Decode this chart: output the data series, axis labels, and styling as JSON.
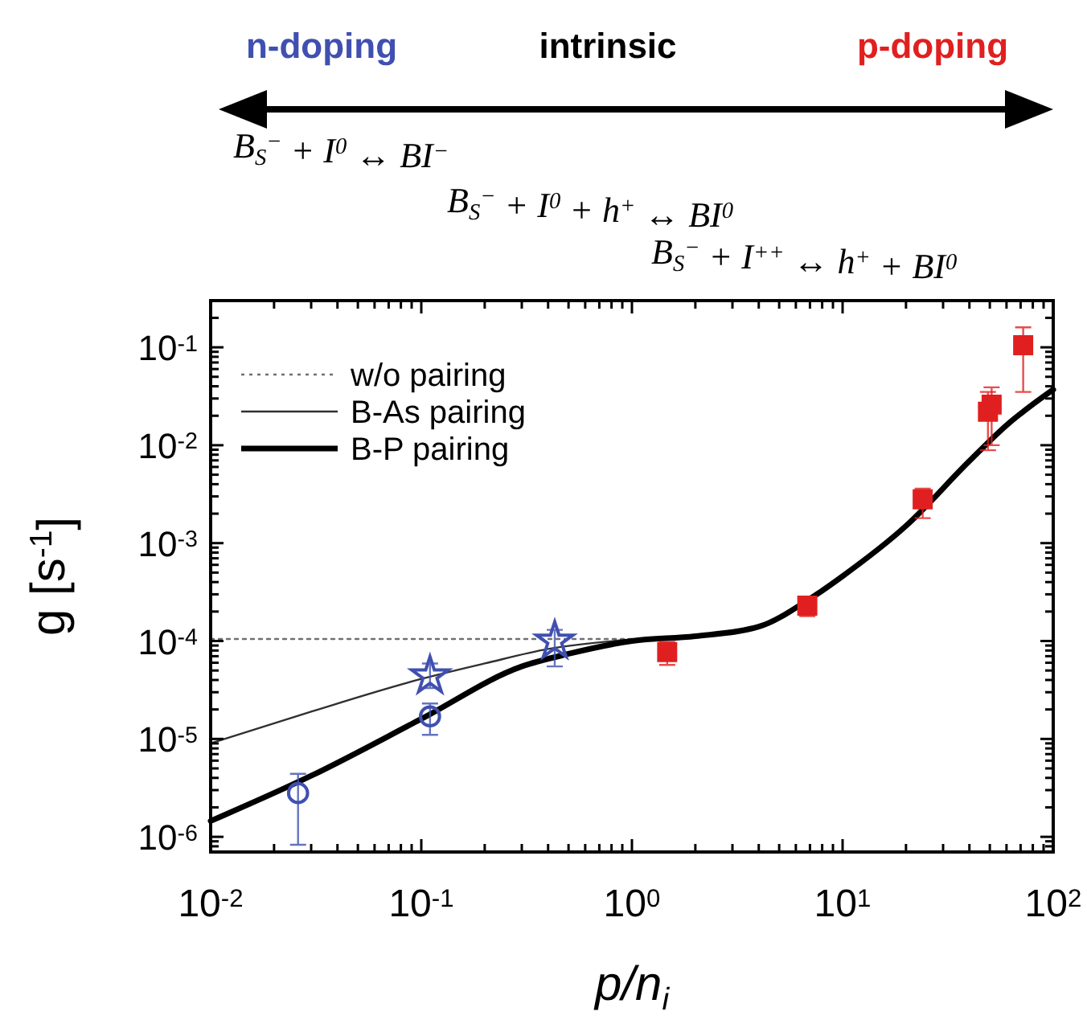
{
  "chart_data": {
    "type": "line",
    "xlabel": "p/n$_{i}$",
    "ylabel": "g [s$^{-1}$]",
    "annotations": [
      "n-doping",
      "intrinsic",
      "p-doping",
      "B$_{S}$$^{−}$ + I$^{0}$ ↔ BI$^{−}$",
      "B$_{S}$$^{−}$ + I$^{0}$ + h$^{+}$ ↔ BI$^{0}$",
      "B$_{S}$$^{−}$ + I$^{++}$ ↔ h$^{+}$ + BI$^{0}$"
    ],
    "log": "xy",
    "legend": "top left",
    "grid": false,
    "xlim": [
      0.01,
      100
    ],
    "ylim": [
      7e-07,
      0.3
    ],
    "xticks": [
      {
        "value": 0.01,
        "label": "10$^{-2}$"
      },
      {
        "value": 0.02,
        "label": null
      },
      {
        "value": 0.03,
        "label": null
      },
      {
        "value": 0.04,
        "label": null
      },
      {
        "value": 0.05,
        "label": null
      },
      {
        "value": 0.06,
        "label": null
      },
      {
        "value": 0.07,
        "label": null
      },
      {
        "value": 0.08,
        "label": null
      },
      {
        "value": 0.09,
        "label": null
      },
      {
        "value": 0.1,
        "label": "10$^{-1}$"
      },
      {
        "value": 0.2,
        "label": null
      },
      {
        "value": 0.3,
        "label": null
      },
      {
        "value": 0.4,
        "label": null
      },
      {
        "value": 0.5,
        "label": null
      },
      {
        "value": 0.6,
        "label": null
      },
      {
        "value": 0.7,
        "label": null
      },
      {
        "value": 0.8,
        "label": null
      },
      {
        "value": 0.9,
        "label": null
      },
      {
        "value": 1,
        "label": "10$^{0}$"
      },
      {
        "value": 2,
        "label": null
      },
      {
        "value": 3,
        "label": null
      },
      {
        "value": 4,
        "label": null
      },
      {
        "value": 5,
        "label": null
      },
      {
        "value": 6,
        "label": null
      },
      {
        "value": 7,
        "label": null
      },
      {
        "value": 8,
        "label": null
      },
      {
        "value": 9,
        "label": null
      },
      {
        "value": 10,
        "label": "10$^{1}$"
      },
      {
        "value": 20,
        "label": null
      },
      {
        "value": 30,
        "label": null
      },
      {
        "value": 40,
        "label": null
      },
      {
        "value": 50,
        "label": null
      },
      {
        "value": 60,
        "label": null
      },
      {
        "value": 70,
        "label": null
      },
      {
        "value": 80,
        "label": null
      },
      {
        "value": 90,
        "label": null
      },
      {
        "value": 100,
        "label": "10$^{2}$"
      }
    ],
    "yticks": [
      {
        "value": 8e-07,
        "label": null
      },
      {
        "value": 9e-07,
        "label": null
      },
      {
        "value": 1e-06,
        "label": "10$^{-6}$"
      },
      {
        "value": 2e-06,
        "label": null
      },
      {
        "value": 3e-06,
        "label": null
      },
      {
        "value": 4e-06,
        "label": null
      },
      {
        "value": 5e-06,
        "label": null
      },
      {
        "value": 6e-06,
        "label": null
      },
      {
        "value": 7e-06,
        "label": null
      },
      {
        "value": 8e-06,
        "label": null
      },
      {
        "value": 9e-06,
        "label": null
      },
      {
        "value": 1e-05,
        "label": "10$^{-5}$"
      },
      {
        "value": 2e-05,
        "label": null
      },
      {
        "value": 3e-05,
        "label": null
      },
      {
        "value": 4e-05,
        "label": null
      },
      {
        "value": 5e-05,
        "label": null
      },
      {
        "value": 6e-05,
        "label": null
      },
      {
        "value": 7e-05,
        "label": null
      },
      {
        "value": 8e-05,
        "label": null
      },
      {
        "value": 9e-05,
        "label": null
      },
      {
        "value": 0.0001,
        "label": "10$^{-4}$"
      },
      {
        "value": 0.0002,
        "label": null
      },
      {
        "value": 0.0003,
        "label": null
      },
      {
        "value": 0.0004,
        "label": null
      },
      {
        "value": 0.0005,
        "label": null
      },
      {
        "value": 0.0006,
        "label": null
      },
      {
        "value": 0.0007,
        "label": null
      },
      {
        "value": 0.0008,
        "label": null
      },
      {
        "value": 0.0009,
        "label": null
      },
      {
        "value": 0.001,
        "label": "10$^{-3}$"
      },
      {
        "value": 0.002,
        "label": null
      },
      {
        "value": 0.003,
        "label": null
      },
      {
        "value": 0.004,
        "label": null
      },
      {
        "value": 0.005,
        "label": null
      },
      {
        "value": 0.006,
        "label": null
      },
      {
        "value": 0.007,
        "label": null
      },
      {
        "value": 0.008,
        "label": null
      },
      {
        "value": 0.009,
        "label": null
      },
      {
        "value": 0.01,
        "label": "10$^{-2}$"
      },
      {
        "value": 0.02,
        "label": null
      },
      {
        "value": 0.03,
        "label": null
      },
      {
        "value": 0.04,
        "label": null
      },
      {
        "value": 0.05,
        "label": null
      },
      {
        "value": 0.06,
        "label": null
      },
      {
        "value": 0.07,
        "label": null
      },
      {
        "value": 0.08,
        "label": null
      },
      {
        "value": 0.09,
        "label": null
      },
      {
        "value": 0.1,
        "label": "10$^{-1}$"
      },
      {
        "value": 0.2,
        "label": null
      }
    ],
    "series": [
      {
        "name": "w/o pairing",
        "line_style": "dotted",
        "color": "#707070",
        "x": [
          0.01,
          0.1,
          0.5,
          1
        ],
        "values": [
          0.000105,
          0.000105,
          0.000105,
          0.000105
        ]
      },
      {
        "name": "B-As pairing",
        "line_style": "solid",
        "color": "#303030",
        "x": [
          0.01,
          0.03,
          0.1,
          0.2,
          0.4,
          1
        ],
        "values": [
          9e-06,
          1.9e-05,
          4.1e-05,
          5.9e-05,
          8.3e-05,
          0.000104
        ]
      },
      {
        "name": "B-P pairing",
        "line_style": "solid",
        "color": "#000000",
        "x": [
          0.01,
          0.03,
          0.1,
          0.3,
          0.5,
          1,
          2,
          4,
          7,
          10,
          20,
          40,
          60,
          100
        ],
        "values": [
          1.45e-06,
          4.2e-06,
          1.6e-05,
          5.5e-05,
          7.4e-05,
          0.0001,
          0.000112,
          0.00014,
          0.00027,
          0.00046,
          0.0015,
          0.0069,
          0.016,
          0.037
        ]
      },
      {
        "type": "scatter",
        "marker": "circle",
        "color": "#4050b0",
        "x": [
          0.026,
          0.11
        ],
        "values": [
          2.8e-06,
          1.7e-05
        ],
        "errors": [
          [
            8.3e-07,
            4.4e-06
          ],
          [
            1.1e-05,
            2.3e-05
          ]
        ]
      },
      {
        "type": "scatter",
        "marker": "star",
        "color": "#4050b0",
        "x": [
          0.11,
          0.43
        ],
        "values": [
          4.4e-05,
          0.0001
        ],
        "errors": [
          [
            3.3e-05,
            5.9e-05
          ],
          [
            5.5e-05,
            0.00013
          ]
        ]
      },
      {
        "type": "scatter",
        "marker": "square",
        "color": "#e02020",
        "x": [
          1.47,
          6.8,
          24,
          49,
          51,
          72
        ],
        "values": [
          7.7e-05,
          0.00023,
          0.0028,
          0.022,
          0.026,
          0.105
        ],
        "errors": [
          [
            5.7e-05,
            9.8e-05
          ],
          [
            0.00018,
            0.00028
          ],
          [
            0.0018,
            0.0036
          ],
          [
            0.0089,
            0.035
          ],
          [
            0.01,
            0.039
          ],
          [
            0.035,
            0.16
          ]
        ]
      }
    ]
  }
}
